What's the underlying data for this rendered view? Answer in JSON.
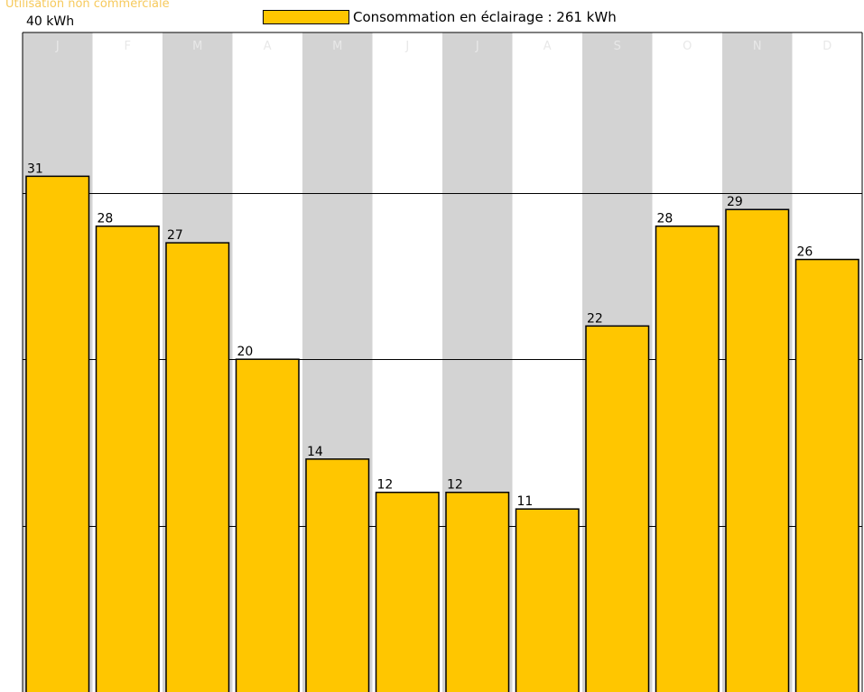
{
  "watermark": "Utilisation non commerciale",
  "legend": {
    "label": "Consommation en éclairage : 261 kWh",
    "color": "#ffc600"
  },
  "colors": {
    "bar": "#ffc600",
    "stripe": "#d3d3d3",
    "month_label": "#e8e8e8",
    "grid": "#000000"
  },
  "chart_data": {
    "type": "bar",
    "categories": [
      "J",
      "F",
      "M",
      "A",
      "M",
      "J",
      "J",
      "A",
      "S",
      "O",
      "N",
      "D"
    ],
    "values": [
      31,
      28,
      27,
      20,
      14,
      12,
      12,
      11,
      22,
      28,
      29,
      26
    ],
    "ylim": [
      0,
      40
    ],
    "ymax_label": "40 kWh",
    "yticks": [
      10,
      20,
      30,
      40
    ],
    "grid": true,
    "legend_position": "top"
  }
}
